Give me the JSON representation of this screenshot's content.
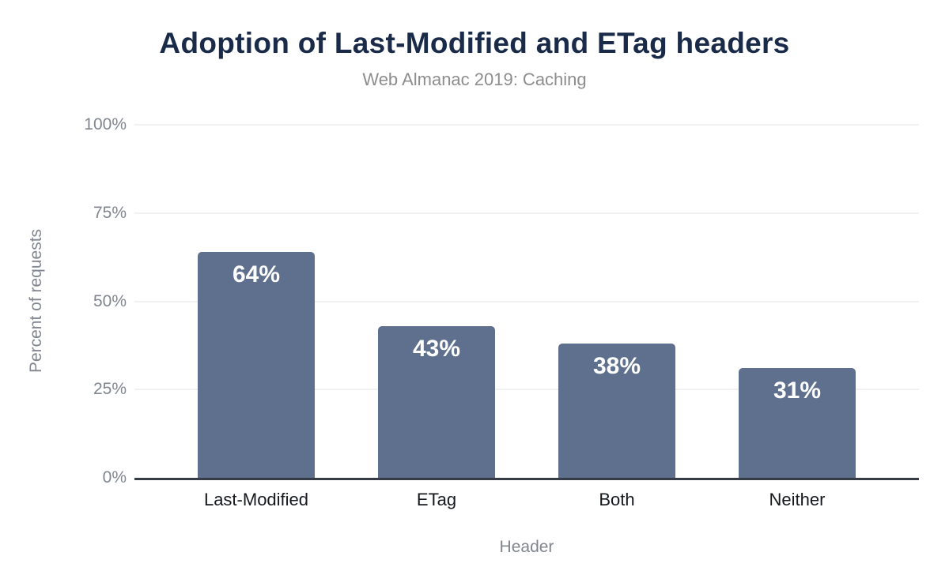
{
  "chart_data": {
    "type": "bar",
    "title": "Adoption of Last-Modified and ETag headers",
    "subtitle": "Web Almanac 2019: Caching",
    "xlabel": "Header",
    "ylabel": "Percent of requests",
    "categories": [
      "Last-Modified",
      "ETag",
      "Both",
      "Neither"
    ],
    "values": [
      64,
      43,
      38,
      31
    ],
    "value_labels": [
      "64%",
      "43%",
      "38%",
      "31%"
    ],
    "ylim": [
      0,
      100
    ],
    "yticks": [
      0,
      25,
      50,
      75,
      100
    ],
    "ytick_labels": [
      "0%",
      "25%",
      "50%",
      "75%",
      "100%"
    ],
    "grid": true,
    "legend_position": "none",
    "colors": {
      "bar": "#5e708e",
      "value_label": "#ffffff",
      "title": "#1a2b49",
      "subtitle": "#8d8d8d",
      "axis_text": "#80858f",
      "category_text": "#15181d",
      "gridline": "#f1f1f1",
      "baseline": "#363c46",
      "background": "#ffffff"
    }
  }
}
